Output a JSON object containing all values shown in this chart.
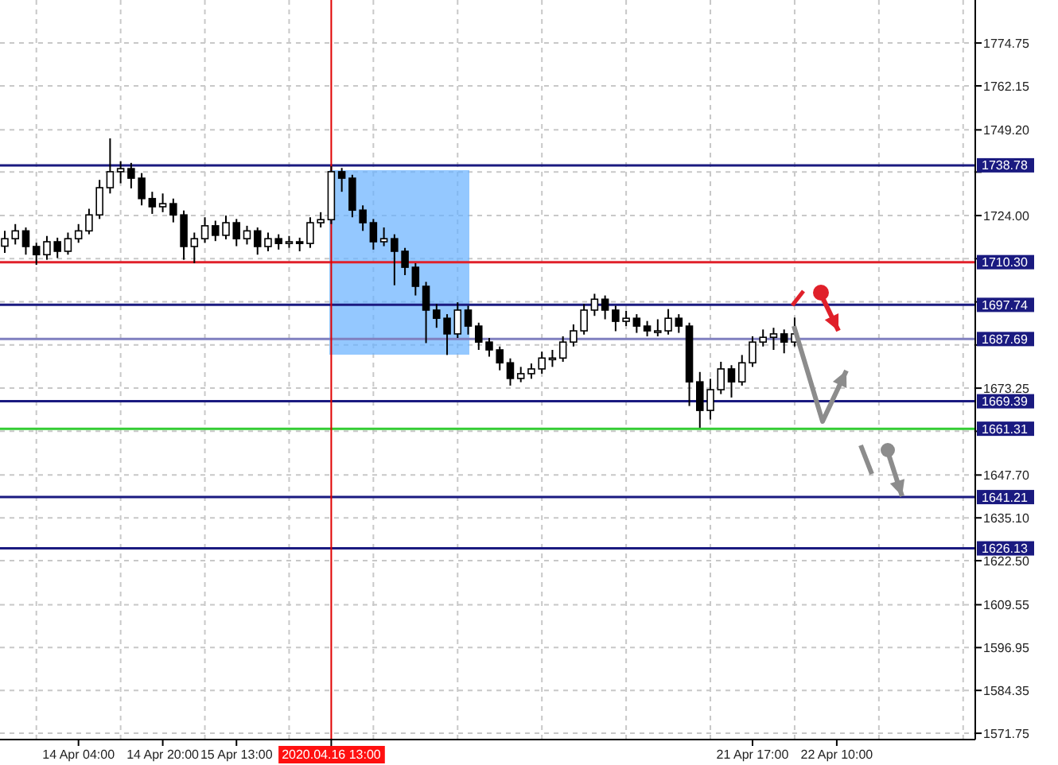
{
  "chart_data": {
    "type": "candlestick",
    "categories": [
      null,
      null,
      null,
      null,
      null,
      null,
      null,
      "14 Apr 04:00",
      null,
      null,
      null,
      null,
      null,
      null,
      null,
      "14 Apr 20:00",
      null,
      null,
      null,
      null,
      null,
      null,
      "15 Apr 13:00",
      null,
      null,
      null,
      null,
      null,
      null,
      null,
      null,
      "2020.04.16 13:00",
      null,
      null,
      null,
      null,
      null,
      null,
      null,
      null,
      null,
      null,
      null,
      null,
      null,
      null,
      null,
      null,
      null,
      null,
      null,
      null,
      null,
      null,
      null,
      null,
      null,
      null,
      null,
      null,
      null,
      null,
      null,
      null,
      null,
      null,
      null,
      null,
      null,
      null,
      null,
      "21 Apr 17:00",
      null,
      null,
      null,
      null,
      null,
      null,
      null,
      "22 Apr 10:00",
      null,
      null,
      null,
      null,
      null,
      null,
      null,
      null,
      null,
      null,
      null,
      null,
      null
    ],
    "ohlc": [
      [
        1715.0,
        1719.5,
        1713.0,
        1717.2
      ],
      [
        1717.2,
        1721.5,
        1715.5,
        1719.5
      ],
      [
        1719.5,
        1720.5,
        1712.5,
        1714.9
      ],
      [
        1714.9,
        1716.0,
        1709.5,
        1712.5
      ],
      [
        1712.5,
        1718.0,
        1711.0,
        1716.3
      ],
      [
        1716.3,
        1717.5,
        1711.5,
        1713.5
      ],
      [
        1713.5,
        1719.0,
        1712.5,
        1717.2
      ],
      [
        1717.2,
        1721.5,
        1716.0,
        1719.5
      ],
      [
        1719.5,
        1726.0,
        1718.5,
        1724.2
      ],
      [
        1724.2,
        1734.5,
        1723.0,
        1732.2
      ],
      [
        1732.2,
        1746.7,
        1730.5,
        1736.9
      ],
      [
        1736.9,
        1740.0,
        1733.5,
        1737.8
      ],
      [
        1737.8,
        1739.5,
        1732.0,
        1735.0
      ],
      [
        1735.0,
        1736.5,
        1727.0,
        1729.0
      ],
      [
        1729.0,
        1731.0,
        1724.5,
        1726.6
      ],
      [
        1726.6,
        1730.5,
        1725.0,
        1727.5
      ],
      [
        1727.5,
        1729.0,
        1722.0,
        1724.2
      ],
      [
        1724.2,
        1725.5,
        1711.0,
        1714.9
      ],
      [
        1714.9,
        1719.0,
        1710.0,
        1717.2
      ],
      [
        1717.2,
        1723.5,
        1716.0,
        1721.0
      ],
      [
        1721.0,
        1722.5,
        1716.5,
        1718.2
      ],
      [
        1718.2,
        1724.0,
        1717.0,
        1721.9
      ],
      [
        1721.9,
        1723.0,
        1715.0,
        1717.2
      ],
      [
        1717.2,
        1721.0,
        1715.5,
        1719.5
      ],
      [
        1719.5,
        1720.5,
        1712.5,
        1714.9
      ],
      [
        1714.9,
        1719.0,
        1713.5,
        1717.2
      ],
      [
        1717.2,
        1718.5,
        1714.0,
        1715.8
      ],
      [
        1715.8,
        1718.0,
        1714.5,
        1716.3
      ],
      [
        1716.3,
        1717.5,
        1713.5,
        1715.8
      ],
      [
        1715.8,
        1723.5,
        1714.5,
        1721.9
      ],
      [
        1721.9,
        1725.0,
        1720.5,
        1722.8
      ],
      [
        1722.8,
        1738.5,
        1721.5,
        1736.9
      ],
      [
        1736.9,
        1738.0,
        1731.0,
        1735.0
      ],
      [
        1735.0,
        1736.0,
        1723.5,
        1725.6
      ],
      [
        1725.6,
        1727.0,
        1719.5,
        1721.9
      ],
      [
        1721.9,
        1723.0,
        1714.0,
        1716.3
      ],
      [
        1716.3,
        1720.5,
        1715.0,
        1717.2
      ],
      [
        1717.2,
        1718.5,
        1703.5,
        1713.5
      ],
      [
        1713.5,
        1714.5,
        1706.5,
        1708.8
      ],
      [
        1708.8,
        1710.0,
        1700.5,
        1703.2
      ],
      [
        1703.2,
        1704.5,
        1686.5,
        1696.2
      ],
      [
        1696.2,
        1698.0,
        1691.0,
        1693.8
      ],
      [
        1693.8,
        1695.0,
        1683.0,
        1689.2
      ],
      [
        1689.2,
        1698.5,
        1688.0,
        1696.2
      ],
      [
        1696.2,
        1697.5,
        1689.0,
        1691.5
      ],
      [
        1691.5,
        1692.5,
        1684.5,
        1686.8
      ],
      [
        1686.8,
        1688.0,
        1682.5,
        1684.5
      ],
      [
        1684.5,
        1685.5,
        1678.5,
        1680.7
      ],
      [
        1680.7,
        1682.0,
        1674.0,
        1676.1
      ],
      [
        1676.1,
        1679.5,
        1675.0,
        1677.5
      ],
      [
        1677.5,
        1680.5,
        1676.0,
        1678.9
      ],
      [
        1678.9,
        1684.0,
        1677.5,
        1682.1
      ],
      [
        1682.1,
        1684.5,
        1679.5,
        1682.1
      ],
      [
        1682.1,
        1688.5,
        1681.0,
        1686.8
      ],
      [
        1686.8,
        1692.0,
        1685.5,
        1690.1
      ],
      [
        1690.1,
        1698.0,
        1689.0,
        1696.2
      ],
      [
        1696.2,
        1701.0,
        1694.5,
        1699.4
      ],
      [
        1699.4,
        1700.5,
        1693.5,
        1696.2
      ],
      [
        1696.2,
        1697.5,
        1690.0,
        1692.9
      ],
      [
        1692.9,
        1696.0,
        1691.5,
        1693.8
      ],
      [
        1693.8,
        1695.0,
        1689.5,
        1691.5
      ],
      [
        1691.5,
        1693.0,
        1688.5,
        1690.1
      ],
      [
        1690.1,
        1693.5,
        1688.5,
        1690.1
      ],
      [
        1690.1,
        1696.5,
        1689.0,
        1693.8
      ],
      [
        1693.8,
        1695.0,
        1689.5,
        1691.5
      ],
      [
        1691.5,
        1692.5,
        1668.0,
        1675.1
      ],
      [
        1675.1,
        1678.0,
        1661.6,
        1666.7
      ],
      [
        1666.7,
        1676.0,
        1664.0,
        1672.8
      ],
      [
        1672.8,
        1681.0,
        1671.5,
        1678.9
      ],
      [
        1678.9,
        1680.0,
        1670.5,
        1675.1
      ],
      [
        1675.1,
        1683.0,
        1674.0,
        1680.7
      ],
      [
        1680.7,
        1688.5,
        1679.5,
        1686.8
      ],
      [
        1686.8,
        1690.5,
        1685.5,
        1688.2
      ],
      [
        1688.2,
        1691.0,
        1684.5,
        1689.2
      ],
      [
        1689.2,
        1690.5,
        1683.5,
        1686.8
      ],
      [
        1686.8,
        1694.0,
        1685.5,
        1689.2
      ],
      null,
      null,
      null,
      null,
      null,
      null,
      null,
      null,
      null,
      null,
      null,
      null,
      null,
      null,
      null,
      null,
      null
    ],
    "ylim": [
      1569.9,
      1787.4
    ],
    "yticks": [
      {
        "value": 1774.75,
        "label": "1774.75"
      },
      {
        "value": 1762.15,
        "label": "1762.15"
      },
      {
        "value": 1749.2,
        "label": "1749.20"
      },
      {
        "value": 1736.8,
        "label": null
      },
      {
        "value": 1724.0,
        "label": "1724.00"
      },
      {
        "value": 1711.31,
        "label": null
      },
      {
        "value": 1698.62,
        "label": null
      },
      {
        "value": 1685.94,
        "label": null
      },
      {
        "value": 1673.25,
        "label": "1673.25"
      },
      {
        "value": 1660.56,
        "label": null
      },
      {
        "value": 1647.7,
        "label": "1647.70"
      },
      {
        "value": 1635.1,
        "label": "1635.10"
      },
      {
        "value": 1622.5,
        "label": "1622.50"
      },
      {
        "value": 1609.55,
        "label": "1609.55"
      },
      {
        "value": 1596.95,
        "label": "1596.95"
      },
      {
        "value": 1584.35,
        "label": "1584.35"
      },
      {
        "value": 1571.75,
        "label": "1571.75"
      }
    ],
    "grid": true,
    "ref_lines": [
      {
        "axis": "y",
        "value": 1738.78,
        "label": "1738.78",
        "color": "#1a1a80"
      },
      {
        "axis": "y",
        "value": 1710.3,
        "label": "1710.30",
        "color": "#e0202a"
      },
      {
        "axis": "y",
        "value": 1697.74,
        "label": "1697.74",
        "color": "#1a1a80"
      },
      {
        "axis": "y",
        "value": 1687.69,
        "label": "1687.69",
        "color": "#8080c0"
      },
      {
        "axis": "y",
        "value": 1669.39,
        "label": "1669.39",
        "color": "#1a1a80"
      },
      {
        "axis": "y",
        "value": 1661.31,
        "label": "1661.31",
        "color": "#33cc33"
      },
      {
        "axis": "y",
        "value": 1641.21,
        "label": "1641.21",
        "color": "#1a1a80"
      },
      {
        "axis": "y",
        "value": 1626.13,
        "label": "1626.13",
        "color": "#1a1a80"
      },
      {
        "axis": "x",
        "value": "2020.04.16 13:00",
        "label": null,
        "color": "#e00000"
      }
    ]
  }
}
